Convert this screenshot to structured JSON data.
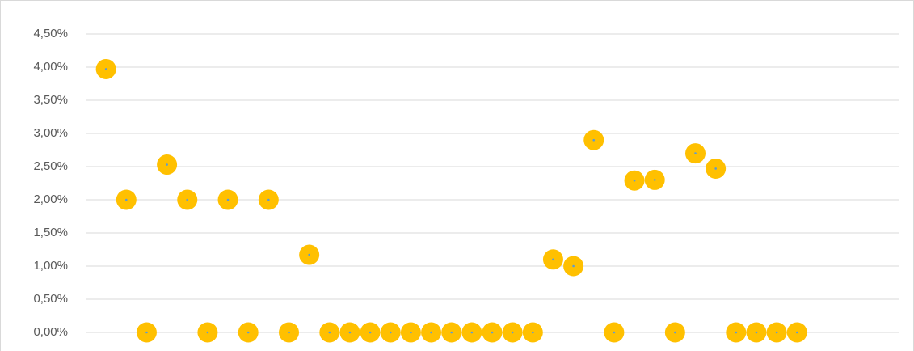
{
  "chart_data": {
    "type": "scatter",
    "x": [
      1,
      2,
      3,
      4,
      5,
      6,
      7,
      8,
      9,
      10,
      11,
      12,
      13,
      14,
      15,
      16,
      17,
      18,
      19,
      20,
      21,
      22,
      23,
      24,
      25,
      26,
      27,
      28,
      29,
      30,
      31,
      32,
      33,
      34,
      35
    ],
    "values": [
      3.97,
      2.0,
      0,
      2.53,
      2.0,
      0,
      2.0,
      0,
      2.0,
      0,
      1.17,
      0,
      0,
      0,
      0,
      0,
      0,
      0,
      0,
      0,
      0,
      0,
      1.1,
      1.0,
      2.9,
      0,
      2.29,
      2.3,
      0,
      2.7,
      2.47,
      0,
      0,
      0,
      0
    ],
    "color": "#ffc000",
    "xlim": [
      0,
      40
    ],
    "ylim": [
      0,
      4.5
    ],
    "yticks": [
      {
        "value": 0,
        "label": "0,00%"
      },
      {
        "value": 0.5,
        "label": "0,50%"
      },
      {
        "value": 1,
        "label": "1,00%"
      },
      {
        "value": 1.5,
        "label": "1,50%"
      },
      {
        "value": 2,
        "label": "2,00%"
      },
      {
        "value": 2.5,
        "label": "2,50%"
      },
      {
        "value": 3,
        "label": "3,00%"
      },
      {
        "value": 3.5,
        "label": "3,50%"
      },
      {
        "value": 4,
        "label": "4,00%"
      },
      {
        "value": 4.5,
        "label": "4,50%"
      }
    ],
    "grid": true
  }
}
